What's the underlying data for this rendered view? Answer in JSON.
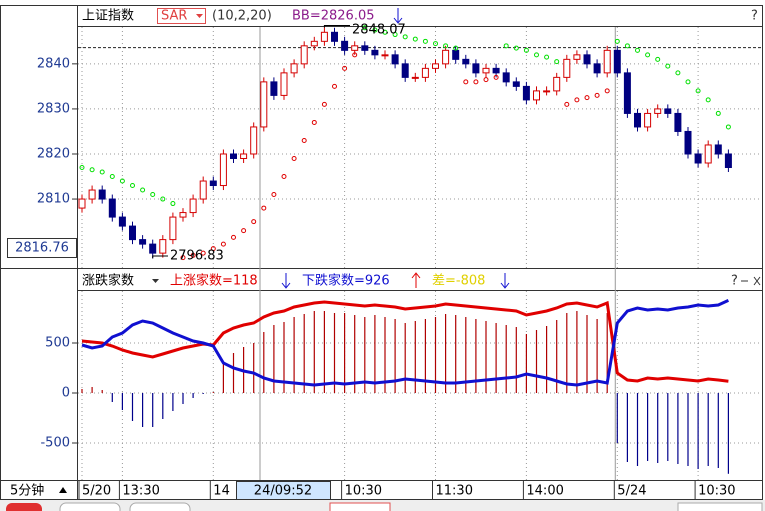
{
  "chart_data": [
    {
      "type": "candlestick",
      "title": "上证指数",
      "indicator": "SAR",
      "params": "(10,2,20)",
      "indicator_value": "BB=2826.05",
      "cursor_price": "2816.76",
      "cursor_time": "24/09:52",
      "max_label": "2848.07",
      "min_label": "2796.83",
      "dashed_level": 2843.6,
      "period": "5分钟",
      "categories": [
        "5/20",
        null,
        null,
        null,
        "13:30",
        null,
        null,
        null,
        null,
        null,
        null,
        null,
        null,
        "14",
        null,
        null,
        null,
        null,
        null,
        null,
        null,
        null,
        null,
        null,
        null,
        null,
        "10:30",
        null,
        null,
        null,
        null,
        null,
        null,
        null,
        null,
        "11:30",
        null,
        null,
        null,
        null,
        null,
        null,
        null,
        null,
        "14:00",
        null,
        null,
        null,
        null,
        null,
        null,
        null,
        null,
        "5/24",
        null,
        null,
        null,
        null,
        null,
        null,
        null,
        "10:30",
        null,
        null,
        null
      ],
      "open": [
        2808,
        2810,
        2812,
        2810,
        2806,
        2804,
        2801,
        2800,
        2798,
        2801,
        2806,
        2807,
        2810,
        2814,
        2813,
        2820,
        2819,
        2820,
        2826,
        2836,
        2833,
        2838,
        2840,
        2844,
        2845,
        2847,
        2845,
        2843,
        2844,
        2843,
        2842,
        2842,
        2840,
        2837,
        2837,
        2839,
        2840,
        2843,
        2841,
        2840,
        2838,
        2839,
        2838,
        2836,
        2835,
        2832,
        2834,
        2834,
        2837,
        2841,
        2842,
        2840,
        2838,
        2843,
        2838,
        2829,
        2826,
        2829,
        2830,
        2829,
        2825,
        2820,
        2818,
        2822,
        2820
      ],
      "close": [
        2810,
        2812,
        2810,
        2806,
        2804,
        2801,
        2800,
        2798,
        2801,
        2806,
        2807,
        2810,
        2814,
        2813,
        2820,
        2819,
        2820,
        2826,
        2836,
        2833,
        2838,
        2840,
        2844,
        2845,
        2847,
        2845,
        2843,
        2844,
        2843,
        2842,
        2842,
        2840,
        2837,
        2837,
        2839,
        2840,
        2843,
        2841,
        2840,
        2838,
        2839,
        2838,
        2836,
        2835,
        2832,
        2834,
        2834,
        2837,
        2841,
        2842,
        2840,
        2838,
        2843,
        2838,
        2829,
        2826,
        2829,
        2830,
        2829,
        2825,
        2820,
        2818,
        2822,
        2820,
        2817
      ],
      "high": [
        2811,
        2813,
        2813,
        2811,
        2807,
        2805,
        2802,
        2801,
        2802,
        2807,
        2808,
        2811,
        2815,
        2815,
        2821,
        2821,
        2821,
        2827,
        2837,
        2837,
        2839,
        2841,
        2845,
        2846,
        2848.07,
        2848,
        2846,
        2845,
        2845,
        2844,
        2843,
        2843,
        2841,
        2838,
        2840,
        2841,
        2844,
        2844,
        2842,
        2841,
        2840,
        2840,
        2839,
        2837,
        2836,
        2835,
        2835,
        2838,
        2842,
        2843,
        2843,
        2841,
        2844,
        2844,
        2839,
        2830,
        2830,
        2831,
        2831,
        2830,
        2826,
        2821,
        2823,
        2823,
        2821
      ],
      "low": [
        2807,
        2809,
        2809,
        2805,
        2803,
        2800,
        2799,
        2796.83,
        2797,
        2800,
        2805,
        2806,
        2809,
        2812,
        2812,
        2818,
        2818,
        2819,
        2825,
        2832,
        2832,
        2837,
        2839,
        2843,
        2844,
        2844,
        2842,
        2842,
        2842,
        2841,
        2841,
        2839,
        2836,
        2836,
        2836,
        2838,
        2839,
        2840,
        2839,
        2837,
        2837,
        2837,
        2835,
        2834,
        2831,
        2831,
        2833,
        2833,
        2836,
        2840,
        2839,
        2837,
        2837,
        2837,
        2828,
        2825,
        2825,
        2828,
        2828,
        2824,
        2819,
        2817,
        2817,
        2819,
        2816
      ],
      "sar": [
        2817,
        2816.5,
        2816,
        2815,
        2814,
        2813,
        2812,
        2811,
        2810,
        2809,
        2797,
        2797.5,
        2798,
        2799,
        2800,
        2801.5,
        2803,
        2805,
        2808,
        2811,
        2815,
        2819,
        2823,
        2827,
        2831,
        2835,
        2839,
        2842,
        2848,
        2847.5,
        2847,
        2846.5,
        2846,
        2845.5,
        2845,
        2844.5,
        2844,
        2843.5,
        2836,
        2836,
        2836.5,
        2837,
        2844,
        2843.5,
        2843,
        2842,
        2841.5,
        2840.5,
        2831,
        2832,
        2832.5,
        2833,
        2834,
        2845,
        2844,
        2843,
        2842,
        2841,
        2839.5,
        2838,
        2836,
        2834,
        2832,
        2829,
        2826
      ],
      "up_color": "#d40000",
      "down_color": "#000080",
      "sar_up_color": "#e00000",
      "sar_down_color": "#00e000",
      "ylim": [
        2794.7,
        2848.4
      ],
      "yticks": [
        2810,
        2820,
        2830,
        2840
      ],
      "grid": true
    },
    {
      "type": "breadth",
      "title": "涨跌家数",
      "up_label": "上涨家数=118",
      "down_label": "下跌家数=926",
      "diff_label": "差=-808",
      "series": [
        {
          "name": "上涨家数",
          "color": "#e00000",
          "values": [
            520,
            510,
            500,
            470,
            430,
            400,
            380,
            360,
            390,
            420,
            450,
            470,
            490,
            480,
            600,
            650,
            680,
            700,
            760,
            800,
            820,
            860,
            880,
            900,
            910,
            900,
            890,
            880,
            870,
            880,
            870,
            860,
            840,
            850,
            860,
            870,
            890,
            880,
            870,
            860,
            850,
            840,
            830,
            820,
            780,
            800,
            820,
            850,
            890,
            900,
            880,
            860,
            900,
            200,
            130,
            120,
            150,
            140,
            150,
            140,
            130,
            120,
            140,
            130,
            118
          ]
        },
        {
          "name": "下跌家数",
          "color": "#1010d0",
          "values": [
            480,
            450,
            470,
            560,
            600,
            680,
            720,
            700,
            650,
            600,
            560,
            520,
            500,
            470,
            300,
            250,
            220,
            200,
            150,
            120,
            110,
            100,
            90,
            80,
            90,
            100,
            90,
            100,
            110,
            100,
            110,
            120,
            140,
            130,
            120,
            110,
            100,
            100,
            110,
            120,
            130,
            140,
            150,
            160,
            190,
            170,
            150,
            120,
            90,
            80,
            100,
            120,
            100,
            700,
            820,
            850,
            830,
            840,
            830,
            850,
            860,
            880,
            870,
            880,
            926
          ]
        }
      ],
      "diff": [
        40,
        60,
        30,
        -90,
        -170,
        -280,
        -340,
        -340,
        -260,
        -180,
        -110,
        -50,
        -10,
        10,
        300,
        400,
        460,
        500,
        610,
        680,
        710,
        760,
        790,
        820,
        820,
        800,
        800,
        780,
        760,
        780,
        760,
        740,
        700,
        720,
        740,
        760,
        790,
        780,
        760,
        740,
        720,
        700,
        680,
        660,
        590,
        630,
        670,
        730,
        800,
        820,
        780,
        740,
        800,
        -500,
        -690,
        -730,
        -680,
        -700,
        -680,
        -710,
        -730,
        -760,
        -730,
        -750,
        -808
      ],
      "pos_color": "#b00000",
      "neg_color": "#00008b",
      "ylim": [
        -870,
        1030
      ],
      "yticks": [
        -500,
        0,
        500
      ],
      "grid": true
    }
  ]
}
